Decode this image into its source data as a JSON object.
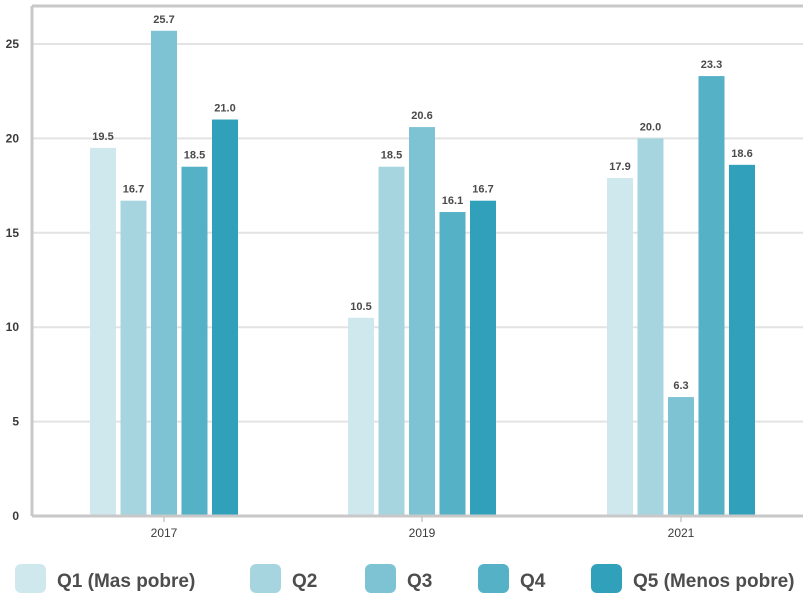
{
  "chart_data": {
    "type": "bar",
    "categories": [
      "2017",
      "2019",
      "2021"
    ],
    "series": [
      {
        "name": "Q1 (Mas pobre)",
        "values": [
          19.5,
          10.5,
          17.9
        ],
        "labels": [
          "19.5",
          "10.5",
          "17.9"
        ],
        "color": "#cfe8ee"
      },
      {
        "name": "Q2",
        "values": [
          16.7,
          18.5,
          20.0
        ],
        "labels": [
          "16.7",
          "18.5",
          "20.0"
        ],
        "color": "#a6d5e0"
      },
      {
        "name": "Q3",
        "values": [
          25.7,
          20.6,
          6.3
        ],
        "labels": [
          "25.7",
          "20.6",
          "6.3"
        ],
        "color": "#7dc3d3"
      },
      {
        "name": "Q4",
        "values": [
          18.5,
          16.1,
          23.3
        ],
        "labels": [
          "18.5",
          "16.1",
          "23.3"
        ],
        "color": "#54b1c6"
      },
      {
        "name": "Q5 (Menos pobre)",
        "values": [
          21.0,
          16.7,
          18.6
        ],
        "labels": [
          "21.0",
          "16.7",
          "18.6"
        ],
        "color": "#31a1bb"
      }
    ],
    "yticks": [
      "0",
      "5",
      "10",
      "15",
      "20",
      "25"
    ],
    "ylim": [
      0,
      27
    ],
    "grid": true,
    "legend_position": "bottom",
    "title": "",
    "xlabel": "",
    "ylabel": ""
  }
}
